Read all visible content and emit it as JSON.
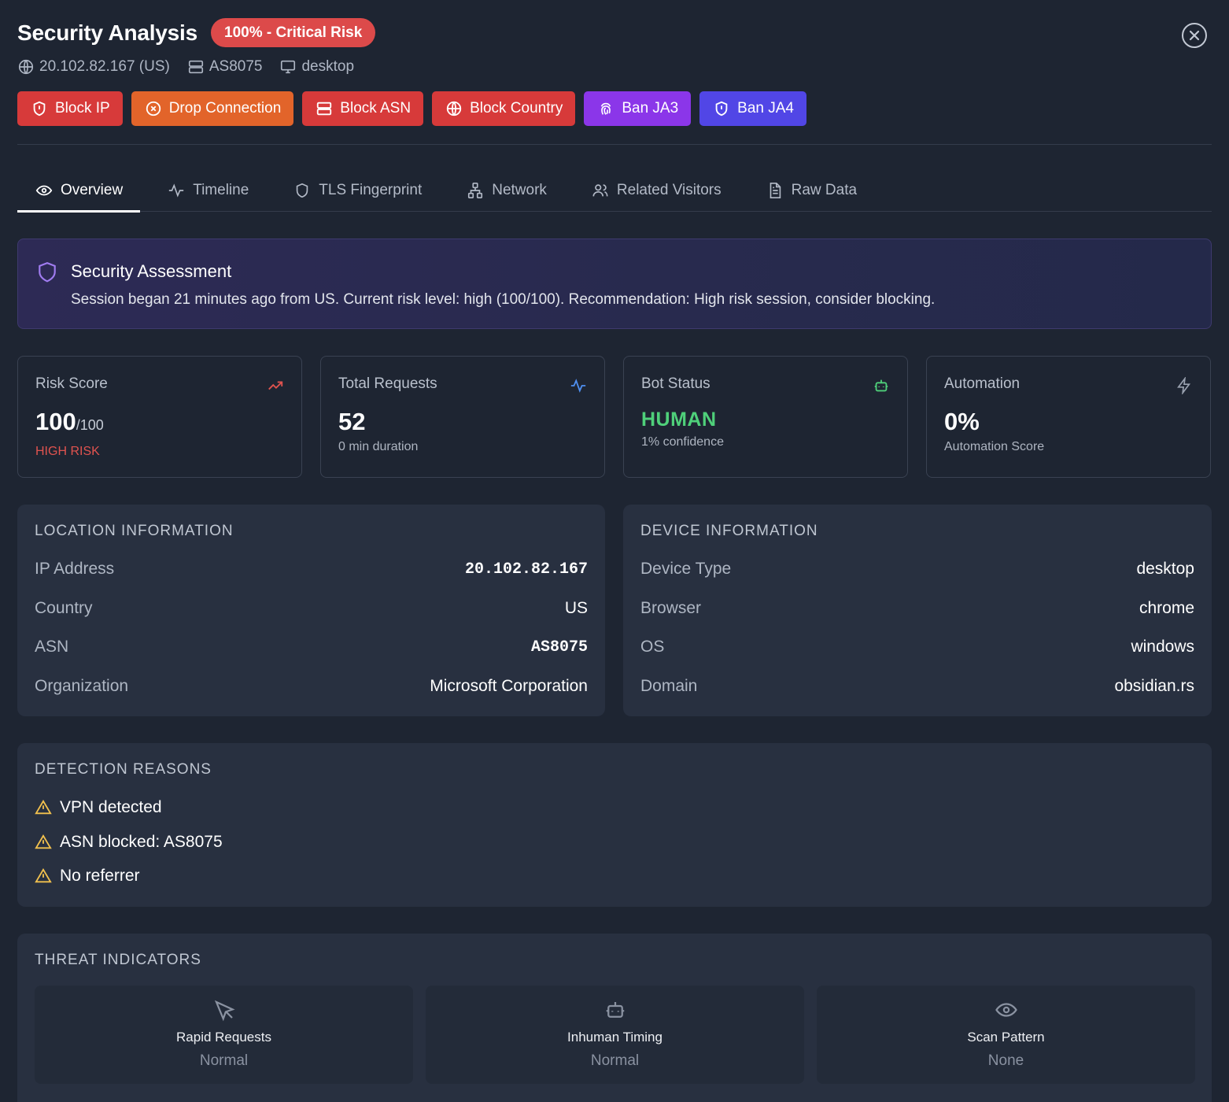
{
  "header": {
    "title": "Security Analysis",
    "risk_badge": "100% - Critical Risk",
    "meta": {
      "ip": "20.102.82.167 (US)",
      "asn": "AS8075",
      "device": "desktop"
    }
  },
  "actions": [
    {
      "label": "Block IP",
      "icon": "shield-alert-icon",
      "color": "#d73a3a"
    },
    {
      "label": "Drop Connection",
      "icon": "x-circle-icon",
      "color": "#e2642a"
    },
    {
      "label": "Block ASN",
      "icon": "server-icon",
      "color": "#d73a3a"
    },
    {
      "label": "Block Country",
      "icon": "globe-icon",
      "color": "#d73a3a"
    },
    {
      "label": "Ban JA3",
      "icon": "fingerprint-icon",
      "color": "#8b36e9"
    },
    {
      "label": "Ban JA4",
      "icon": "shield-alert-icon",
      "color": "#5146e6"
    }
  ],
  "tabs": [
    {
      "label": "Overview",
      "active": true
    },
    {
      "label": "Timeline"
    },
    {
      "label": "TLS Fingerprint"
    },
    {
      "label": "Network"
    },
    {
      "label": "Related Visitors"
    },
    {
      "label": "Raw Data"
    }
  ],
  "assessment": {
    "title": "Security Assessment",
    "text": "Session began 21 minutes ago from US. Current risk level: high (100/100). Recommendation: High risk session, consider blocking."
  },
  "stats": {
    "risk": {
      "label": "Risk Score",
      "value": "100",
      "max": "/100",
      "sub": "HIGH RISK",
      "sub_color": "#e0534f"
    },
    "requests": {
      "label": "Total Requests",
      "value": "52",
      "sub": "0 min duration"
    },
    "bot": {
      "label": "Bot Status",
      "value": "HUMAN",
      "sub": "1% confidence"
    },
    "automation": {
      "label": "Automation",
      "value": "0%",
      "sub": "Automation Score"
    }
  },
  "location": {
    "title": "LOCATION INFORMATION",
    "rows": [
      {
        "key": "IP Address",
        "value": "20.102.82.167"
      },
      {
        "key": "Country",
        "value": "US"
      },
      {
        "key": "ASN",
        "value": "AS8075"
      },
      {
        "key": "Organization",
        "value": "Microsoft Corporation"
      }
    ]
  },
  "device": {
    "title": "DEVICE INFORMATION",
    "rows": [
      {
        "key": "Device Type",
        "value": "desktop"
      },
      {
        "key": "Browser",
        "value": "chrome"
      },
      {
        "key": "OS",
        "value": "windows"
      },
      {
        "key": "Domain",
        "value": "obsidian.rs"
      }
    ]
  },
  "detection": {
    "title": "DETECTION REASONS",
    "reasons": [
      "VPN detected",
      "ASN blocked: AS8075",
      "No referrer"
    ]
  },
  "threats": {
    "title": "THREAT INDICATORS",
    "items": [
      {
        "name": "Rapid Requests",
        "status": "Normal",
        "icon": "cursor-click-icon"
      },
      {
        "name": "Inhuman Timing",
        "status": "Normal",
        "icon": "bot-icon"
      },
      {
        "name": "Scan Pattern",
        "status": "None",
        "icon": "eye-icon"
      }
    ]
  },
  "colors": {
    "background": "#1e2532",
    "panel": "#283040",
    "critical": "#dc4a4a",
    "human": "#4fd07a",
    "warning": "#f2c14e"
  }
}
